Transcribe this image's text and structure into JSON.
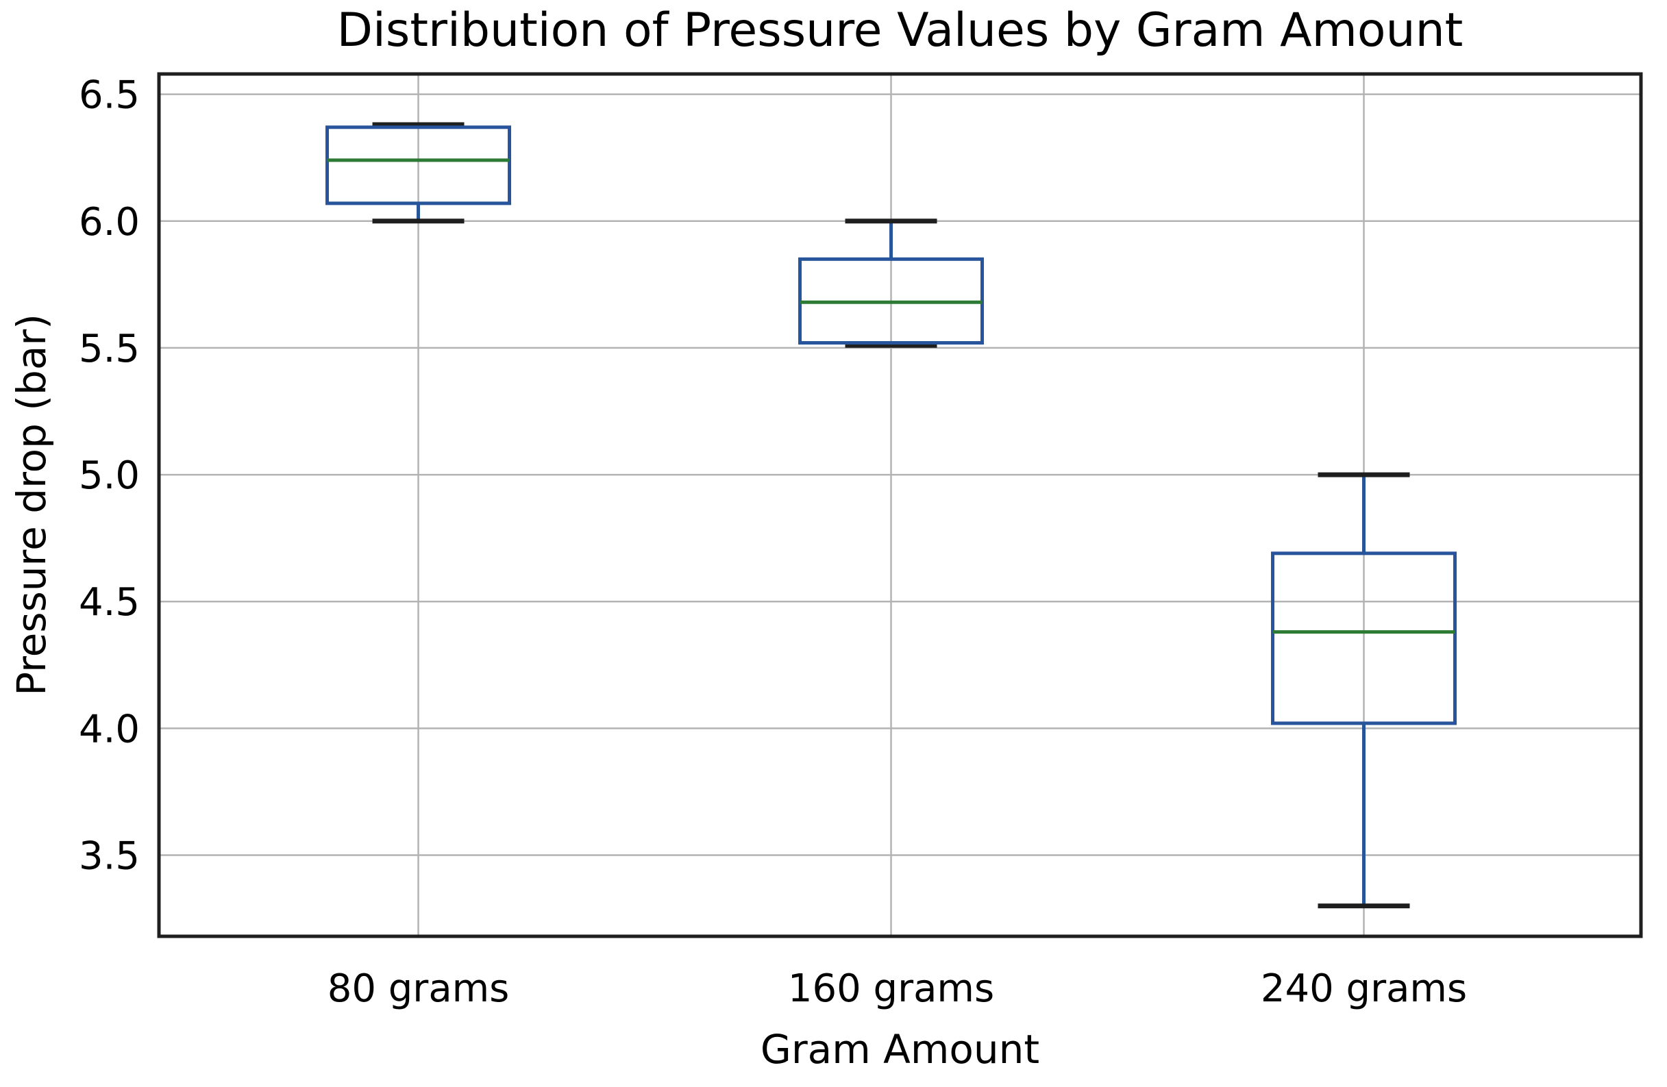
{
  "chart_data": {
    "type": "boxplot",
    "title": "Distribution of Pressure Values by Gram Amount",
    "xlabel": "Gram Amount",
    "ylabel": "Pressure drop (bar)",
    "categories": [
      "80 grams",
      "160 grams",
      "240 grams"
    ],
    "series": [
      {
        "name": "80 grams",
        "whisker_low": 6.0,
        "q1": 6.07,
        "median": 6.24,
        "q3": 6.37,
        "whisker_high": 6.38
      },
      {
        "name": "160 grams",
        "whisker_low": 5.51,
        "q1": 5.52,
        "median": 5.68,
        "q3": 5.85,
        "whisker_high": 6.0
      },
      {
        "name": "240 grams",
        "whisker_low": 3.3,
        "q1": 4.02,
        "median": 4.38,
        "q3": 4.69,
        "whisker_high": 5.0
      }
    ],
    "y_ticks": [
      {
        "value": 6.5,
        "label": "6.5"
      },
      {
        "value": 6.0,
        "label": "6.0"
      },
      {
        "value": 5.5,
        "label": "5.5"
      },
      {
        "value": 5.0,
        "label": "5.0"
      },
      {
        "value": 4.5,
        "label": "4.5"
      },
      {
        "value": 4.0,
        "label": "4.0"
      },
      {
        "value": 3.5,
        "label": "3.5"
      }
    ],
    "ylim": [
      3.18,
      6.58
    ],
    "grid": true,
    "legend": "none",
    "colors": {
      "box": "#27549b",
      "whisker": "#27549b",
      "cap": "#1f1f1f",
      "median": "#2c7a33",
      "grid": "#b3b3b3",
      "spine": "#1f1f1f",
      "background": "#ffffff",
      "text": "#000000"
    }
  }
}
